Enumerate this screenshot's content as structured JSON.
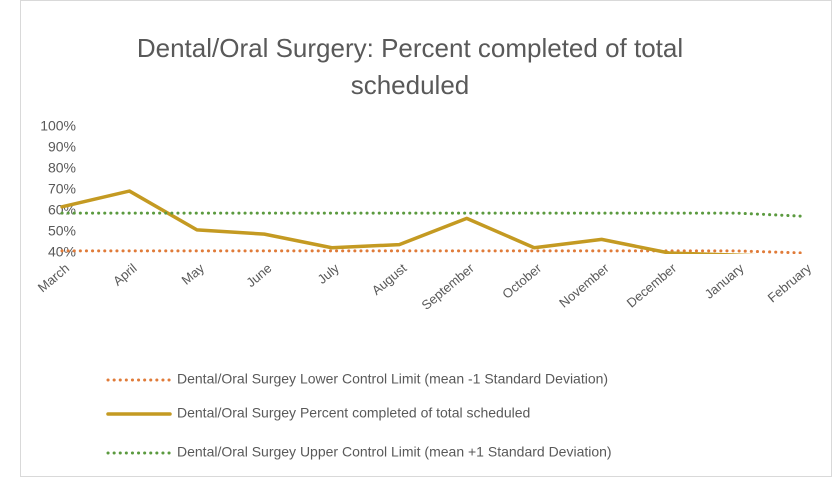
{
  "chart_data": {
    "type": "line",
    "title": "Dental/Oral Surgery: Percent completed of total scheduled",
    "categories": [
      "March",
      "April",
      "May",
      "June",
      "July",
      "August",
      "September",
      "October",
      "November",
      "December",
      "January",
      "February"
    ],
    "series": [
      {
        "name": "Dental/Oral Surgey Lower Control Limit (mean -1 Standard Deviation)",
        "color": "#e07b39",
        "style": "dotted",
        "values": [
          41,
          41,
          41,
          41,
          41,
          41,
          41,
          41,
          41,
          41,
          41,
          40
        ]
      },
      {
        "name": "Dental/Oral Surgey Percent completed of total scheduled",
        "color": "#c49a22",
        "style": "solid",
        "values": [
          62,
          69.5,
          51,
          49,
          42.5,
          44,
          56.5,
          42.5,
          46.5,
          40,
          39,
          38
        ]
      },
      {
        "name": "Dental/Oral Surgey Upper Control Limit (mean +1 Standard Deviation)",
        "color": "#5b9a3f",
        "style": "dotted",
        "values": [
          59,
          59,
          59,
          59,
          59,
          59,
          59,
          59,
          59,
          59,
          59,
          57.5
        ]
      }
    ],
    "ylim": [
      40,
      100
    ],
    "yticks": [
      {
        "value": 40,
        "label": "40%"
      },
      {
        "value": 50,
        "label": "50%"
      },
      {
        "value": 60,
        "label": "60%"
      },
      {
        "value": 70,
        "label": "70%"
      },
      {
        "value": 80,
        "label": "80%"
      },
      {
        "value": 90,
        "label": "90%"
      },
      {
        "value": 100,
        "label": "100%"
      }
    ],
    "grid": false,
    "legend": "bottom"
  }
}
